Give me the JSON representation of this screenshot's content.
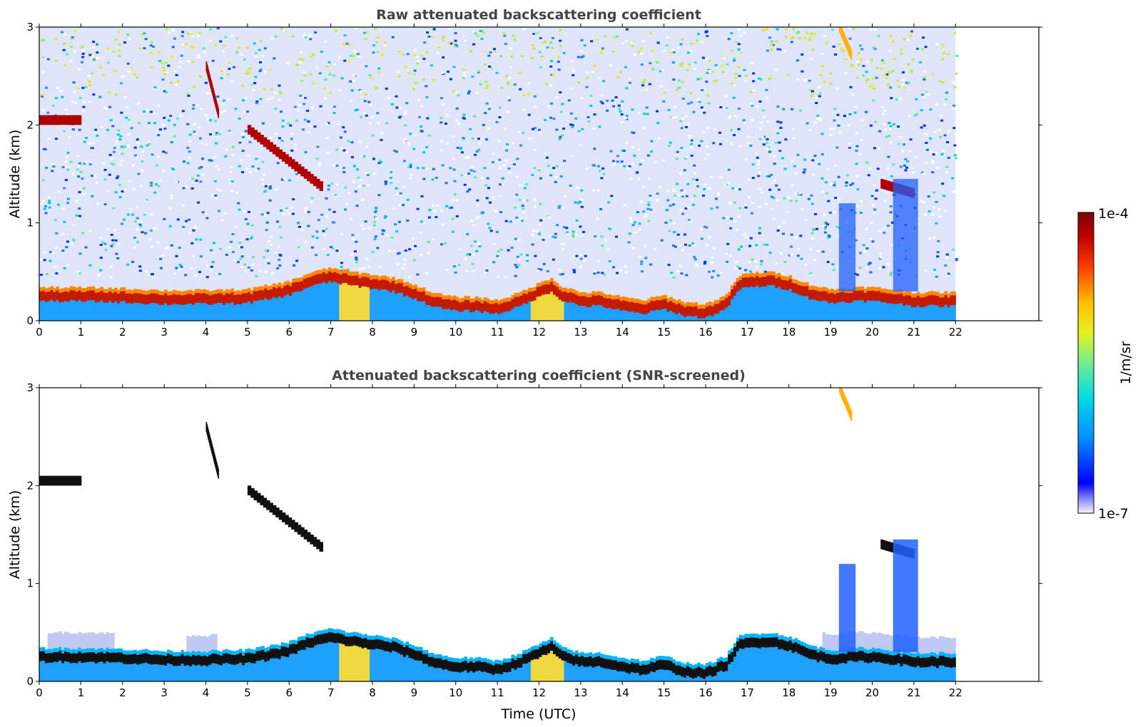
{
  "chart_data": [
    {
      "type": "heatmap",
      "title": "Raw attenuated backscattering coefficient",
      "xlabel": "",
      "ylabel": "Altitude (km)",
      "xlim": [
        0,
        24
      ],
      "ylim": [
        0,
        3
      ],
      "xticks": [
        "0",
        "1",
        "2",
        "3",
        "4",
        "5",
        "6",
        "7",
        "8",
        "9",
        "10",
        "11",
        "12",
        "13",
        "14",
        "15",
        "16",
        "17",
        "18",
        "19",
        "20",
        "21",
        "22"
      ],
      "yticks": [
        "0",
        "1",
        "2",
        "3"
      ],
      "data_extent_hours": [
        0,
        22
      ],
      "features": {
        "boundary_layer_top_km": [
          [
            0,
            0.3
          ],
          [
            1,
            0.3
          ],
          [
            2,
            0.29
          ],
          [
            3,
            0.27
          ],
          [
            4,
            0.27
          ],
          [
            5,
            0.28
          ],
          [
            6,
            0.36
          ],
          [
            6.5,
            0.45
          ],
          [
            7,
            0.5
          ],
          [
            7.5,
            0.46
          ],
          [
            8,
            0.43
          ],
          [
            8.5,
            0.4
          ],
          [
            9,
            0.33
          ],
          [
            9.5,
            0.24
          ],
          [
            10,
            0.2
          ],
          [
            10.5,
            0.2
          ],
          [
            11,
            0.17
          ],
          [
            11.5,
            0.24
          ],
          [
            12,
            0.34
          ],
          [
            12.3,
            0.4
          ],
          [
            12.5,
            0.32
          ],
          [
            13,
            0.25
          ],
          [
            13.5,
            0.25
          ],
          [
            14,
            0.2
          ],
          [
            14.5,
            0.17
          ],
          [
            15,
            0.22
          ],
          [
            15.5,
            0.15
          ],
          [
            16,
            0.13
          ],
          [
            16.5,
            0.22
          ],
          [
            16.8,
            0.42
          ],
          [
            17,
            0.44
          ],
          [
            17.5,
            0.46
          ],
          [
            18,
            0.42
          ],
          [
            18.5,
            0.33
          ],
          [
            19,
            0.28
          ],
          [
            19.5,
            0.3
          ],
          [
            20,
            0.3
          ],
          [
            20.5,
            0.28
          ],
          [
            21,
            0.25
          ],
          [
            21.5,
            0.25
          ],
          [
            22,
            0.25
          ]
        ],
        "elevated_layers": [
          {
            "t0": 0.0,
            "t1": 1.0,
            "alt0": 2.05,
            "alt1": 2.05
          },
          {
            "t0": 4.0,
            "t1": 4.3,
            "alt0": 2.6,
            "alt1": 2.1
          },
          {
            "t0": 5.0,
            "t1": 6.8,
            "alt0": 1.95,
            "alt1": 1.35
          },
          {
            "t0": 20.2,
            "t1": 21.0,
            "alt0": 1.4,
            "alt1": 1.3
          },
          {
            "t0": 19.2,
            "t1": 19.5,
            "alt0": 3.0,
            "alt1": 2.7
          }
        ]
      }
    },
    {
      "type": "heatmap",
      "title": "Attenuated backscattering coefficient (SNR-screened)",
      "xlabel": "Time (UTC)",
      "ylabel": "Altitude (km)",
      "xlim": [
        0,
        24
      ],
      "ylim": [
        0,
        3
      ],
      "xticks": [
        "0",
        "1",
        "2",
        "3",
        "4",
        "5",
        "6",
        "7",
        "8",
        "9",
        "10",
        "11",
        "12",
        "13",
        "14",
        "15",
        "16",
        "17",
        "18",
        "19",
        "20",
        "21",
        "22"
      ],
      "yticks": [
        "0",
        "1",
        "2",
        "3"
      ],
      "data_extent_hours": [
        0,
        22
      ]
    }
  ],
  "colorbar": {
    "max_label": "1e-4",
    "min_label": "1e-7",
    "unit": "1/m/sr",
    "scale": "log",
    "colors": [
      "#e8e8f8",
      "#9090f0",
      "#0000ff",
      "#0080ff",
      "#00d0e0",
      "#60f0a0",
      "#d0f020",
      "#ffc000",
      "#ff4000",
      "#b00000",
      "#800000"
    ]
  }
}
